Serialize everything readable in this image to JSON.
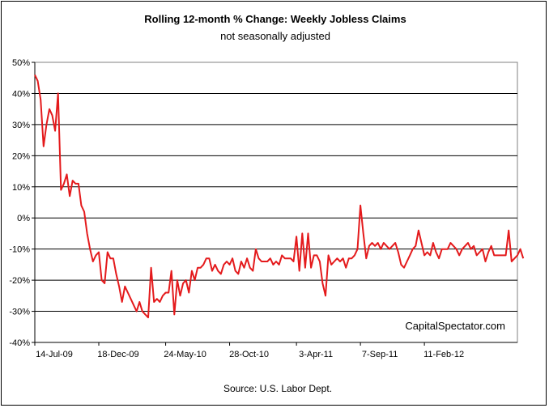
{
  "chart_data": {
    "type": "line",
    "title": "Rolling 12-month %  Change: Weekly Jobless Claims",
    "subtitle": "not seasonally adjusted",
    "source": "Source: U.S. Labor Dept.",
    "watermark": "CapitalSpectator.com",
    "y_tick_labels": [
      "50%",
      "40%",
      "30%",
      "20%",
      "10%",
      "0%",
      "-10%",
      "-20%",
      "-30%",
      "-40%"
    ],
    "y_ticks": [
      50,
      40,
      30,
      20,
      10,
      0,
      -10,
      -20,
      -30,
      -40
    ],
    "ylim": [
      -40,
      50
    ],
    "x_tick_labels": [
      "14-Jul-09",
      "18-Dec-09",
      "24-May-10",
      "28-Oct-10",
      "3-Apr-11",
      "7-Sep-11",
      "11-Feb-12"
    ],
    "x_tick_weeks": [
      0,
      22,
      45,
      67,
      90,
      112,
      134
    ],
    "x_range_weeks": [
      0,
      166
    ],
    "grid": true,
    "line_color": "#e41a1c",
    "series": [
      {
        "values": [
          46,
          44,
          38,
          23,
          30,
          35,
          33,
          28,
          40,
          9,
          11,
          14,
          7,
          12,
          11,
          11,
          4,
          2,
          -5,
          -10,
          -14,
          -12,
          -11,
          -20,
          -21,
          -11,
          -13,
          -13,
          -18,
          -22,
          -27,
          -22,
          -24,
          -26,
          -28,
          -30,
          -27,
          -30,
          -31,
          -32,
          -16,
          -27,
          -26,
          -27,
          -25,
          -24,
          -24,
          -17,
          -31,
          -20,
          -25,
          -21,
          -20,
          -24,
          -17,
          -20,
          -16,
          -16,
          -15,
          -13,
          -13,
          -17,
          -15,
          -17,
          -18,
          -15,
          -14,
          -15,
          -13,
          -17,
          -18,
          -14,
          -16,
          -13,
          -16,
          -17,
          -10,
          -13,
          -14,
          -14,
          -14,
          -13,
          -15,
          -14,
          -15,
          -12,
          -13,
          -13,
          -13,
          -14,
          -6,
          -17,
          -5,
          -16,
          -5,
          -16,
          -12,
          -12,
          -14,
          -21,
          -25,
          -12,
          -15,
          -14,
          -13,
          -14,
          -13,
          -16,
          -13,
          -13,
          -12,
          -10,
          4,
          -5,
          -13,
          -9,
          -8,
          -9,
          -8,
          -10,
          -8,
          -9,
          -10,
          -9,
          -8,
          -11,
          -15,
          -16,
          -14,
          -12,
          -10,
          -9,
          -4,
          -8,
          -12,
          -11,
          -12,
          -8,
          -11,
          -13,
          -10,
          -10,
          -10,
          -8,
          -9,
          -10,
          -12,
          -10,
          -9,
          -8,
          -10,
          -9,
          -12,
          -11,
          -10,
          -14,
          -11,
          -9,
          -12,
          -12,
          -12,
          -12,
          -12,
          -4,
          -14,
          -13,
          -12,
          -10,
          -13
        ]
      }
    ]
  }
}
